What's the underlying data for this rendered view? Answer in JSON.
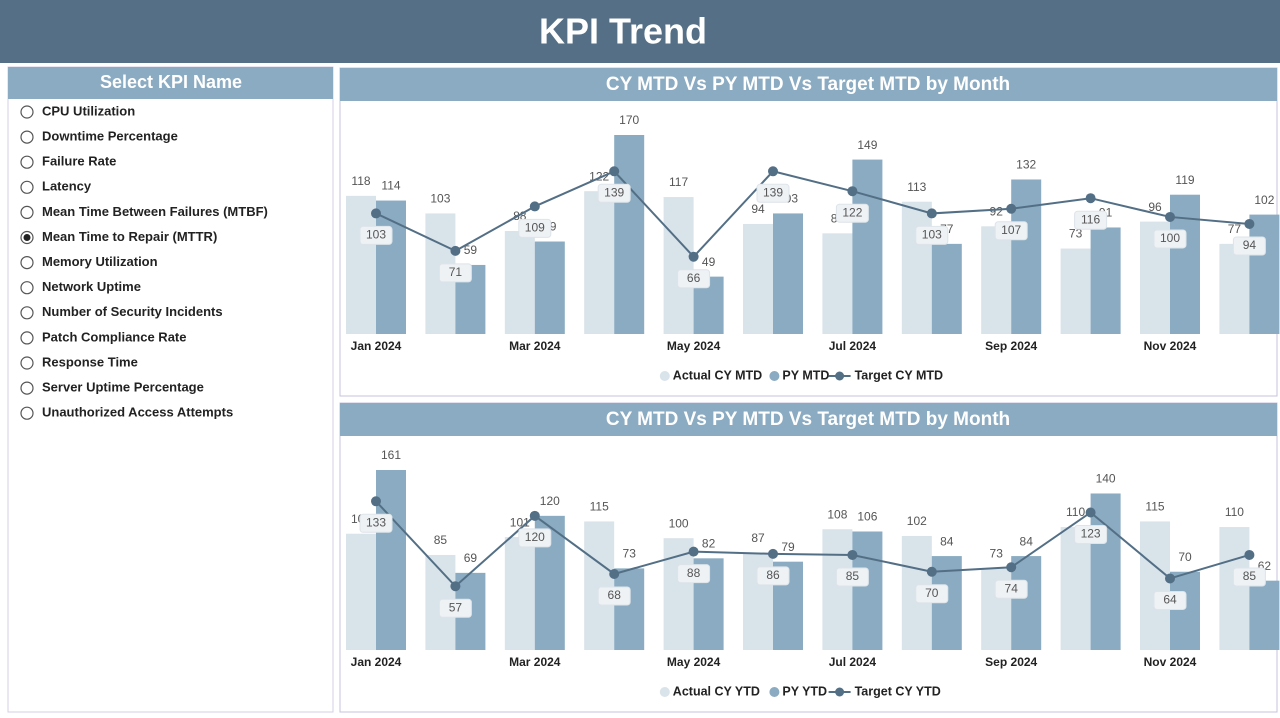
{
  "header": {
    "title": "KPI Trend"
  },
  "slicer": {
    "title": "Select KPI Name",
    "items": [
      "CPU Utilization",
      "Downtime Percentage",
      "Failure Rate",
      "Latency",
      "Mean Time Between Failures (MTBF)",
      "Mean Time to Repair (MTTR)",
      "Memory Utilization",
      "Network Uptime",
      "Number of Security Incidents",
      "Patch Compliance Rate",
      "Response Time",
      "Server Uptime Percentage",
      "Unauthorized Access Attempts"
    ],
    "selected": 5
  },
  "chart_data": [
    {
      "type": "combo",
      "title": "CY MTD Vs PY MTD Vs Target MTD by Month",
      "categories": [
        "Jan 2024",
        null,
        "Mar 2024",
        null,
        "May 2024",
        null,
        "Jul 2024",
        null,
        "Sep 2024",
        null,
        "Nov 2024",
        null
      ],
      "series": [
        {
          "name": "Actual CY MTD",
          "mark": "bar",
          "color": "#d9e3ea",
          "values": [
            118,
            103,
            88,
            122,
            117,
            94,
            86,
            113,
            92,
            73,
            96,
            77
          ]
        },
        {
          "name": "PY MTD",
          "mark": "bar",
          "color": "#8aabc1",
          "values": [
            114,
            59,
            79,
            170,
            49,
            103,
            149,
            77,
            132,
            91,
            119,
            102
          ]
        },
        {
          "name": "Target CY MTD",
          "mark": "line",
          "color": "#536f86",
          "values": [
            103,
            71,
            109,
            139,
            66,
            139,
            122,
            103,
            107,
            116,
            100,
            94
          ]
        }
      ]
    },
    {
      "type": "combo",
      "title": "CY MTD Vs PY MTD Vs Target MTD by Month",
      "categories": [
        "Jan 2024",
        null,
        "Mar 2024",
        null,
        "May 2024",
        null,
        "Jul 2024",
        null,
        "Sep 2024",
        null,
        "Nov 2024",
        null
      ],
      "series": [
        {
          "name": "Actual CY YTD",
          "mark": "bar",
          "color": "#d9e3ea",
          "values": [
            104,
            85,
            101,
            115,
            100,
            87,
            108,
            102,
            73,
            110,
            115,
            110
          ]
        },
        {
          "name": "PY YTD",
          "mark": "bar",
          "color": "#8aabc1",
          "values": [
            161,
            69,
            120,
            73,
            82,
            79,
            106,
            84,
            84,
            140,
            70,
            62
          ]
        },
        {
          "name": "Target CY YTD",
          "mark": "line",
          "color": "#536f86",
          "values": [
            133,
            57,
            120,
            68,
            88,
            86,
            85,
            70,
            74,
            123,
            64,
            85
          ]
        }
      ]
    }
  ]
}
